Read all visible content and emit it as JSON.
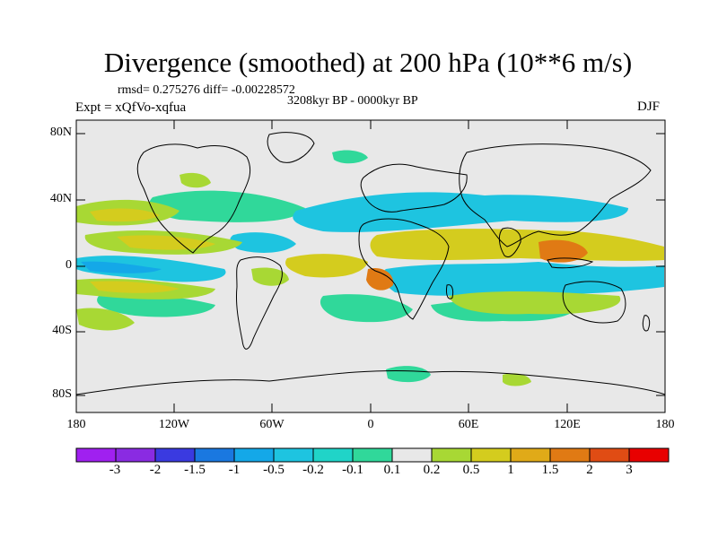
{
  "title": "Divergence (smoothed) at 200 hPa (10**6 m/s)",
  "stats": "rmsd= 0.275276 diff= -0.00228572",
  "period": "3208kyr BP - 0000kyr BP",
  "experiment": "Expt = xQfVo-xqfua",
  "season": "DJF",
  "lat_labels": [
    "80N",
    "40N",
    "0",
    "40S",
    "80S"
  ],
  "lon_labels": [
    "180",
    "120W",
    "60W",
    "0",
    "60E",
    "120E",
    "180"
  ],
  "colorbar": {
    "labels": [
      "-3",
      "-2",
      "-1.5",
      "-1",
      "-0.5",
      "-0.2",
      "-0.1",
      "0.1",
      "0.2",
      "0.5",
      "1",
      "1.5",
      "2",
      "3"
    ],
    "colors": [
      "#8a2be2",
      "#3a3ae0",
      "#1a78e0",
      "#14a8e8",
      "#1ec4e0",
      "#20d4c8",
      "#30d89a",
      "#e8e8e8",
      "#a8d834",
      "#d4cc1e",
      "#e0aa18",
      "#e07a14",
      "#e04c14",
      "#e0201a"
    ]
  },
  "map_colors": {
    "background": "#e8e8e8",
    "neg_weak": "#30d89a",
    "neg_mid": "#1ec4e0",
    "neg_strong": "#14a8e8",
    "pos_weak": "#a8d834",
    "pos_mid": "#d4cc1e",
    "pos_strong": "#e0aa18",
    "pos_vstrong": "#e07a14",
    "coast": "#000000"
  }
}
